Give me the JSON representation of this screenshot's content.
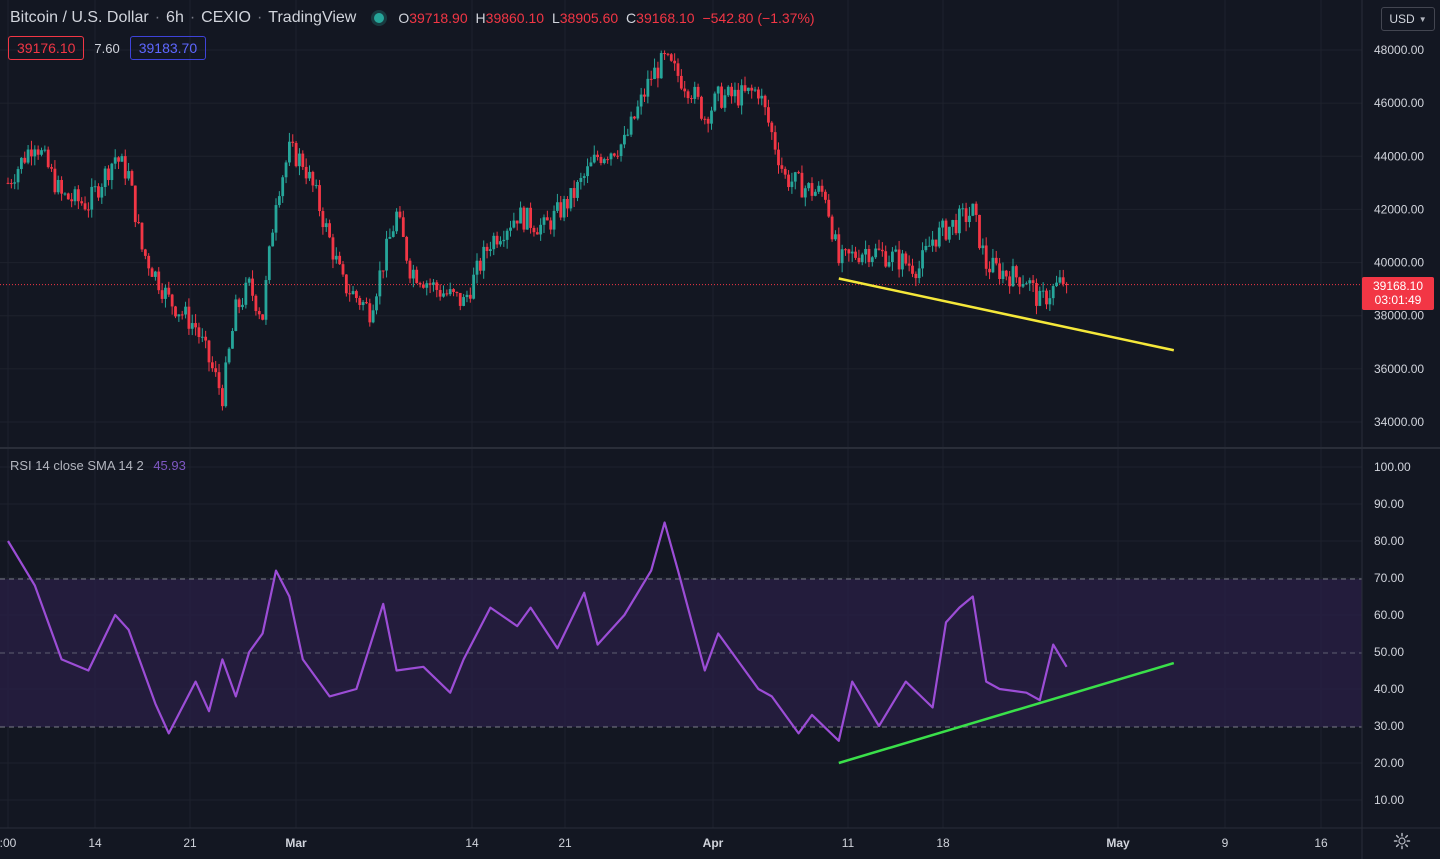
{
  "header": {
    "symbol": "Bitcoin / U.S. Dollar",
    "interval": "6h",
    "exchange": "CEXIO",
    "source": "TradingView",
    "ohlc": {
      "o_label": "O",
      "o": "39718.90",
      "h_label": "H",
      "h": "39860.10",
      "l_label": "L",
      "l": "38905.60",
      "c_label": "C",
      "c": "39168.10",
      "change": "−542.80 (−1.37%)"
    }
  },
  "order_badges": {
    "sell": "39176.10",
    "spread": "7.60",
    "buy": "39183.70"
  },
  "currency_button": "USD",
  "last_price": {
    "price": "39168.10",
    "countdown": "03:01:49",
    "value": 39168.1
  },
  "price_axis": {
    "labels": [
      "48000.00",
      "46000.00",
      "44000.00",
      "42000.00",
      "40000.00",
      "38000.00",
      "36000.00",
      "34000.00"
    ],
    "values": [
      48000,
      46000,
      44000,
      42000,
      40000,
      38000,
      36000,
      34000
    ]
  },
  "rsi_axis": {
    "labels": [
      "100.00",
      "90.00",
      "80.00",
      "70.00",
      "60.00",
      "50.00",
      "40.00",
      "30.00",
      "20.00",
      "10.00"
    ],
    "values": [
      100,
      90,
      80,
      70,
      60,
      50,
      40,
      30,
      20,
      10
    ]
  },
  "time_axis": {
    "labels": [
      ":00",
      "14",
      "21",
      "Mar",
      "14",
      "21",
      "Apr",
      "11",
      "18",
      "May",
      "9",
      "16"
    ],
    "bold": [
      false,
      false,
      false,
      true,
      false,
      false,
      true,
      false,
      false,
      true,
      false,
      false
    ]
  },
  "rsi_legend": {
    "name": "RSI",
    "params": "14 close SMA 14 2",
    "value": "45.93"
  },
  "colors": {
    "background": "#131722",
    "up": "#26a69a",
    "down": "#f23645",
    "rsi_line": "#9c4dd6",
    "rsi_band": "#7e57c2",
    "trend_price": "#f5e83a",
    "trend_rsi": "#3ae04a",
    "grid": "#1e222d"
  },
  "chart_data": [
    {
      "type": "candlestick",
      "title": "Bitcoin / U.S. Dollar, 6h, CEXIO",
      "y_range": [
        33500,
        48700
      ],
      "x_range": [
        "2022-02-08",
        "2022-05-18"
      ],
      "close_path_approx": [
        [
          "2022-02-08",
          43000
        ],
        [
          "2022-02-10",
          44600
        ],
        [
          "2022-02-12",
          42500
        ],
        [
          "2022-02-14",
          42200
        ],
        [
          "2022-02-16",
          44000
        ],
        [
          "2022-02-17",
          43300
        ],
        [
          "2022-02-18",
          40500
        ],
        [
          "2022-02-20",
          38600
        ],
        [
          "2022-02-22",
          37600
        ],
        [
          "2022-02-24",
          35000
        ],
        [
          "2022-02-25",
          38200
        ],
        [
          "2022-02-26",
          39100
        ],
        [
          "2022-02-27",
          38000
        ],
        [
          "2022-02-28",
          42500
        ],
        [
          "2022-03-01",
          44200
        ],
        [
          "2022-03-02",
          43800
        ],
        [
          "2022-03-03",
          42500
        ],
        [
          "2022-03-05",
          39200
        ],
        [
          "2022-03-07",
          38200
        ],
        [
          "2022-03-09",
          41800
        ],
        [
          "2022-03-10",
          39800
        ],
        [
          "2022-03-12",
          39000
        ],
        [
          "2022-03-14",
          38500
        ],
        [
          "2022-03-16",
          40800
        ],
        [
          "2022-03-18",
          41800
        ],
        [
          "2022-03-20",
          41300
        ],
        [
          "2022-03-22",
          42400
        ],
        [
          "2022-03-24",
          44000
        ],
        [
          "2022-03-26",
          44500
        ],
        [
          "2022-03-28",
          47000
        ],
        [
          "2022-03-29",
          47600
        ],
        [
          "2022-03-31",
          46500
        ],
        [
          "2022-04-01",
          45500
        ],
        [
          "2022-04-02",
          46200
        ],
        [
          "2022-04-04",
          46300
        ],
        [
          "2022-04-05",
          46500
        ],
        [
          "2022-04-07",
          43200
        ],
        [
          "2022-04-09",
          42700
        ],
        [
          "2022-04-10",
          42600
        ],
        [
          "2022-04-11",
          40000
        ],
        [
          "2022-04-13",
          40500
        ],
        [
          "2022-04-15",
          40200
        ],
        [
          "2022-04-17",
          39800
        ],
        [
          "2022-04-18",
          40900
        ],
        [
          "2022-04-20",
          41600
        ],
        [
          "2022-04-21",
          41900
        ],
        [
          "2022-04-22",
          39900
        ],
        [
          "2022-04-24",
          39500
        ],
        [
          "2022-04-25",
          39400
        ],
        [
          "2022-04-26",
          38500
        ],
        [
          "2022-04-27",
          39000
        ],
        [
          "2022-04-28",
          39400
        ]
      ],
      "last_close": 39168.1,
      "trendline": {
        "color": "yellow",
        "from": [
          "2022-04-11",
          39400
        ],
        "to": [
          "2022-05-06",
          36700
        ]
      }
    },
    {
      "type": "line",
      "title": "RSI 14 close SMA 14 2",
      "y_range": [
        0,
        100
      ],
      "bands": {
        "upper": 70,
        "middle": 50,
        "lower": 30
      },
      "series": [
        {
          "name": "RSI",
          "x": [
            "2022-02-08",
            "2022-02-10",
            "2022-02-12",
            "2022-02-14",
            "2022-02-16",
            "2022-02-17",
            "2022-02-19",
            "2022-02-20",
            "2022-02-22",
            "2022-02-23",
            "2022-02-24",
            "2022-02-25",
            "2022-02-26",
            "2022-02-27",
            "2022-02-28",
            "2022-03-01",
            "2022-03-02",
            "2022-03-04",
            "2022-03-06",
            "2022-03-08",
            "2022-03-09",
            "2022-03-11",
            "2022-03-13",
            "2022-03-14",
            "2022-03-16",
            "2022-03-18",
            "2022-03-19",
            "2022-03-21",
            "2022-03-23",
            "2022-03-24",
            "2022-03-26",
            "2022-03-28",
            "2022-03-29",
            "2022-03-30",
            "2022-04-01",
            "2022-04-02",
            "2022-04-03",
            "2022-04-05",
            "2022-04-06",
            "2022-04-08",
            "2022-04-09",
            "2022-04-11",
            "2022-04-12",
            "2022-04-14",
            "2022-04-16",
            "2022-04-18",
            "2022-04-19",
            "2022-04-20",
            "2022-04-21",
            "2022-04-22",
            "2022-04-23",
            "2022-04-25",
            "2022-04-26",
            "2022-04-27",
            "2022-04-28"
          ],
          "values": [
            80,
            68,
            48,
            45,
            60,
            56,
            36,
            28,
            42,
            34,
            48,
            38,
            50,
            55,
            72,
            65,
            48,
            38,
            40,
            63,
            45,
            46,
            39,
            48,
            62,
            57,
            62,
            51,
            66,
            52,
            60,
            72,
            85,
            72,
            45,
            55,
            50,
            40,
            38,
            28,
            33,
            26,
            42,
            30,
            42,
            35,
            58,
            62,
            65,
            42,
            40,
            39,
            37,
            52,
            46
          ]
        }
      ],
      "trendline": {
        "color": "green",
        "from": [
          "2022-04-11",
          20
        ],
        "to": [
          "2022-05-06",
          47
        ]
      }
    }
  ]
}
